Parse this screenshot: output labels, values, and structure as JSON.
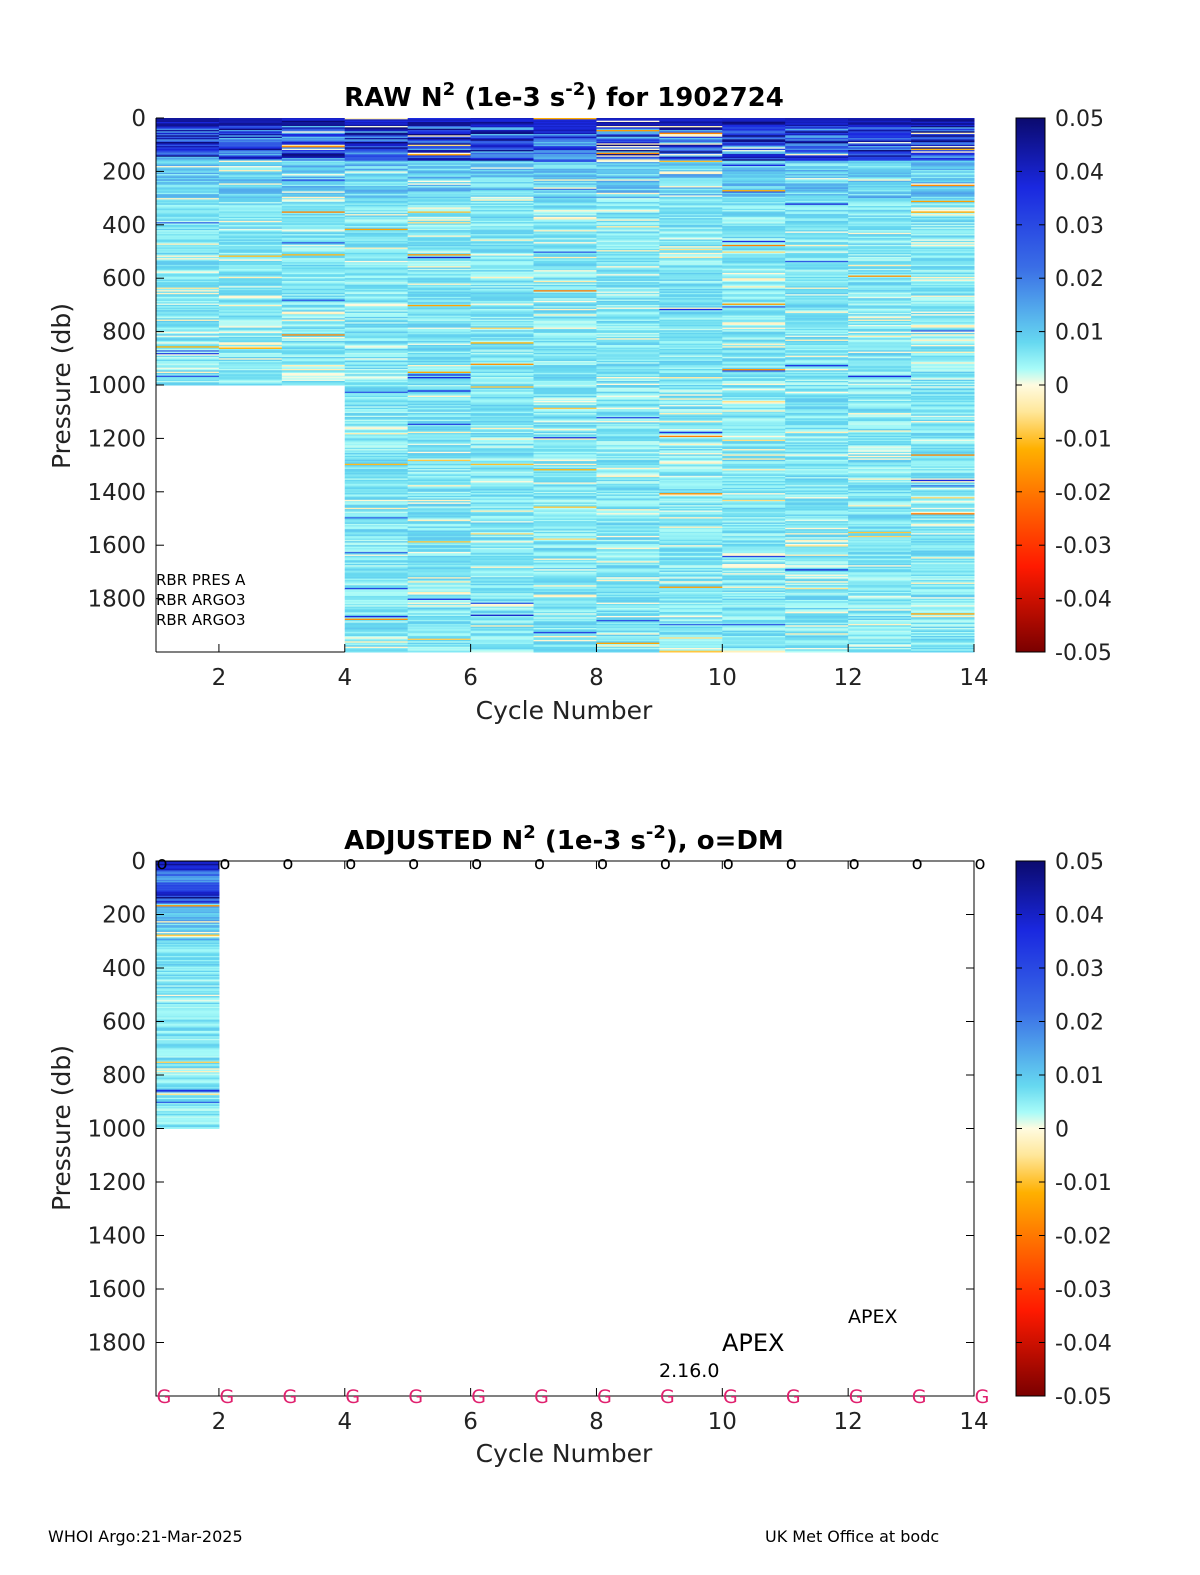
{
  "footer": {
    "left": "WHOI Argo:21-Mar-2025",
    "right": "UK Met Office at bodc"
  },
  "colorbar": {
    "ticks": [
      "0.05",
      "0.04",
      "0.03",
      "0.02",
      "0.01",
      "0",
      "-0.01",
      "-0.02",
      "-0.03",
      "-0.04",
      "-0.05"
    ],
    "range": [
      -0.05,
      0.05
    ],
    "colormap": "jet-like with light cream center",
    "colors": {
      "high": "#0b0a6e",
      "mid_blue": "#3a6ee6",
      "cyan": "#7ff5f5",
      "center": "#fffbe0",
      "orange": "#ff9a00",
      "red": "#ff1a00",
      "low": "#7a0000"
    }
  },
  "chart_data": [
    {
      "type": "heatmap",
      "title": "RAW N² (1e-3 s⁻²) for 1902724",
      "title_parts": {
        "a": "RAW N",
        "sup1": "2",
        "b": " (1e-3 s",
        "sup2": "-2",
        "c": ") for 1902724"
      },
      "xlabel": "Cycle Number",
      "ylabel": "Pressure (db)",
      "xlim": [
        1,
        14
      ],
      "ylim": [
        0,
        2000
      ],
      "y_reversed": true,
      "x_ticks": [
        "2",
        "4",
        "6",
        "8",
        "10",
        "12",
        "14"
      ],
      "y_ticks": [
        "0",
        "200",
        "400",
        "600",
        "800",
        "1000",
        "1200",
        "1400",
        "1600",
        "1800"
      ],
      "profiles": [
        {
          "cycle": 1,
          "max_pressure": 1000
        },
        {
          "cycle": 2,
          "max_pressure": 1000
        },
        {
          "cycle": 3,
          "max_pressure": 1000
        },
        {
          "cycle": 4,
          "max_pressure": 2000
        },
        {
          "cycle": 5,
          "max_pressure": 2000
        },
        {
          "cycle": 6,
          "max_pressure": 2000
        },
        {
          "cycle": 7,
          "max_pressure": 2000
        },
        {
          "cycle": 8,
          "max_pressure": 2000
        },
        {
          "cycle": 9,
          "max_pressure": 2000
        },
        {
          "cycle": 10,
          "max_pressure": 2000
        },
        {
          "cycle": 11,
          "max_pressure": 2000
        },
        {
          "cycle": 12,
          "max_pressure": 2000
        },
        {
          "cycle": 13,
          "max_pressure": 2000
        }
      ],
      "value_pattern": "strongly positive (0.03–0.05) in upper ~150 db, mostly 0 to 0.01 below, with sparse negative streaks",
      "annotations": [
        "RBR PRES A",
        "RBR ARGO3",
        "RBR ARGO3"
      ]
    },
    {
      "type": "heatmap",
      "title": "ADJUSTED N² (1e-3 s⁻²), o=DM",
      "title_parts": {
        "a": "ADJUSTED N",
        "sup1": "2",
        "b": " (1e-3 s",
        "sup2": "-2",
        "c": "), o=DM"
      },
      "xlabel": "Cycle Number",
      "ylabel": "Pressure (db)",
      "xlim": [
        1,
        14
      ],
      "ylim": [
        0,
        2000
      ],
      "y_reversed": true,
      "x_ticks": [
        "2",
        "4",
        "6",
        "8",
        "10",
        "12",
        "14"
      ],
      "y_ticks": [
        "0",
        "200",
        "400",
        "600",
        "800",
        "1000",
        "1200",
        "1400",
        "1600",
        "1800"
      ],
      "profiles": [
        {
          "cycle": 1,
          "max_pressure": 1000
        }
      ],
      "dm_marker": "o",
      "dm_cycles": [
        1,
        2,
        3,
        4,
        5,
        6,
        7,
        8,
        9,
        10,
        11,
        12,
        13,
        14
      ],
      "qc_marker": "G",
      "qc_color": "#e0206e",
      "qc_cycles": [
        1,
        2,
        3,
        4,
        5,
        6,
        7,
        8,
        9,
        10,
        11,
        12,
        13,
        14
      ],
      "annotations": {
        "apex_small": "APEX",
        "apex_large": "APEX",
        "version": "2.16.0"
      }
    }
  ]
}
